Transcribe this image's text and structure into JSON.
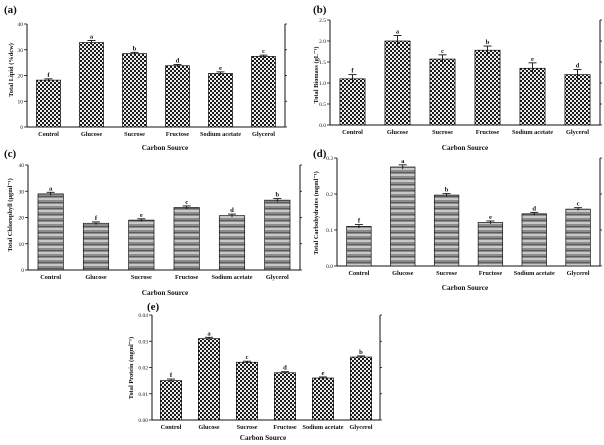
{
  "figure": {
    "panels": [
      {
        "tag": "(a)",
        "ylabel": "Total Lipid (%dcw)",
        "xlabel": "Carbon Source"
      },
      {
        "tag": "(b)",
        "ylabel": "Total Biomass (gL⁻¹)",
        "xlabel": "Carbon Source"
      },
      {
        "tag": "(c)",
        "ylabel": "Total Chlorophyll (μgml⁻¹)",
        "xlabel": "Carbon Source"
      },
      {
        "tag": "(d)",
        "ylabel": "Total Carbohydrates (mgml⁻¹)",
        "xlabel": "Carbon Source"
      },
      {
        "tag": "(e)",
        "ylabel": "Total Protein (mgml⁻¹)",
        "xlabel": "Carbon Source"
      }
    ]
  },
  "chart_data": [
    {
      "type": "bar",
      "title": "",
      "xlabel": "Carbon Source",
      "ylabel": "Total Lipid (%dcw)",
      "categories": [
        "Control",
        "Glucose",
        "Sucrose",
        "Fructose",
        "Sodium acetate",
        "Glycerol"
      ],
      "values": [
        18.2,
        32.8,
        28.5,
        23.8,
        20.8,
        27.4
      ],
      "errors": [
        0.5,
        0.8,
        0.5,
        0.5,
        0.6,
        0.5
      ],
      "letters": [
        "f",
        "a",
        "b",
        "d",
        "e",
        "c"
      ],
      "ylim": [
        0,
        40
      ],
      "yticks": [
        0,
        10,
        20,
        30,
        40
      ],
      "pattern": "check",
      "grid": false
    },
    {
      "type": "bar",
      "title": "",
      "xlabel": "Carbon Source",
      "ylabel": "Total Biomass (gL⁻¹)",
      "categories": [
        "Control",
        "Glucose",
        "Sucrose",
        "Fructose",
        "Sodium acetate",
        "Glycerol"
      ],
      "values": [
        1.1,
        2.0,
        1.57,
        1.78,
        1.35,
        1.2
      ],
      "errors": [
        0.1,
        0.13,
        0.1,
        0.1,
        0.13,
        0.12
      ],
      "letters": [
        "f",
        "a",
        "c",
        "b",
        "e",
        "d"
      ],
      "ylim": [
        0,
        2.5
      ],
      "yticks": [
        0.0,
        0.5,
        1.0,
        1.5,
        2.0,
        2.5
      ],
      "pattern": "check",
      "grid": false
    },
    {
      "type": "bar",
      "title": "",
      "xlabel": "Carbon Source",
      "ylabel": "Total Chlorophyll (μgml⁻¹)",
      "categories": [
        "Control",
        "Glucose",
        "Sucrose",
        "Fructose",
        "Sodium acetate",
        "Glycerol"
      ],
      "values": [
        29.0,
        17.8,
        19.0,
        23.8,
        20.7,
        26.6
      ],
      "errors": [
        0.6,
        0.5,
        0.5,
        0.6,
        0.6,
        0.6
      ],
      "letters": [
        "a",
        "f",
        "e",
        "c",
        "d",
        "b"
      ],
      "ylim": [
        0,
        40
      ],
      "yticks": [
        0,
        10,
        20,
        30,
        40
      ],
      "pattern": "stripe",
      "grid": false
    },
    {
      "type": "bar",
      "title": "",
      "xlabel": "Carbon Source",
      "ylabel": "Total Carbohydrates (mgml⁻¹)",
      "categories": [
        "Control",
        "Glucose",
        "Sucrose",
        "Fructose",
        "Sodium acetate",
        "Glycerol"
      ],
      "values": [
        0.11,
        0.275,
        0.197,
        0.121,
        0.145,
        0.158
      ],
      "errors": [
        0.005,
        0.006,
        0.004,
        0.004,
        0.004,
        0.004
      ],
      "letters": [
        "f",
        "a",
        "b",
        "e",
        "d",
        "c"
      ],
      "ylim": [
        0,
        0.3
      ],
      "yticks": [
        0.0,
        0.1,
        0.2,
        0.3
      ],
      "pattern": "stripe",
      "grid": false
    },
    {
      "type": "bar",
      "title": "",
      "xlabel": "Carbon Source",
      "ylabel": "Total Protein (mgml⁻¹)",
      "categories": [
        "Control",
        "Glucose",
        "Sucrose",
        "Fructose",
        "Sodium acetate",
        "Glycerol"
      ],
      "values": [
        0.015,
        0.031,
        0.022,
        0.018,
        0.016,
        0.024
      ],
      "errors": [
        0.0006,
        0.0005,
        0.0004,
        0.0004,
        0.0004,
        0.0004
      ],
      "letters": [
        "f",
        "a",
        "c",
        "d",
        "e",
        "b"
      ],
      "ylim": [
        0,
        0.04
      ],
      "yticks": [
        0.0,
        0.01,
        0.02,
        0.03,
        0.04
      ],
      "pattern": "check",
      "grid": false
    }
  ]
}
